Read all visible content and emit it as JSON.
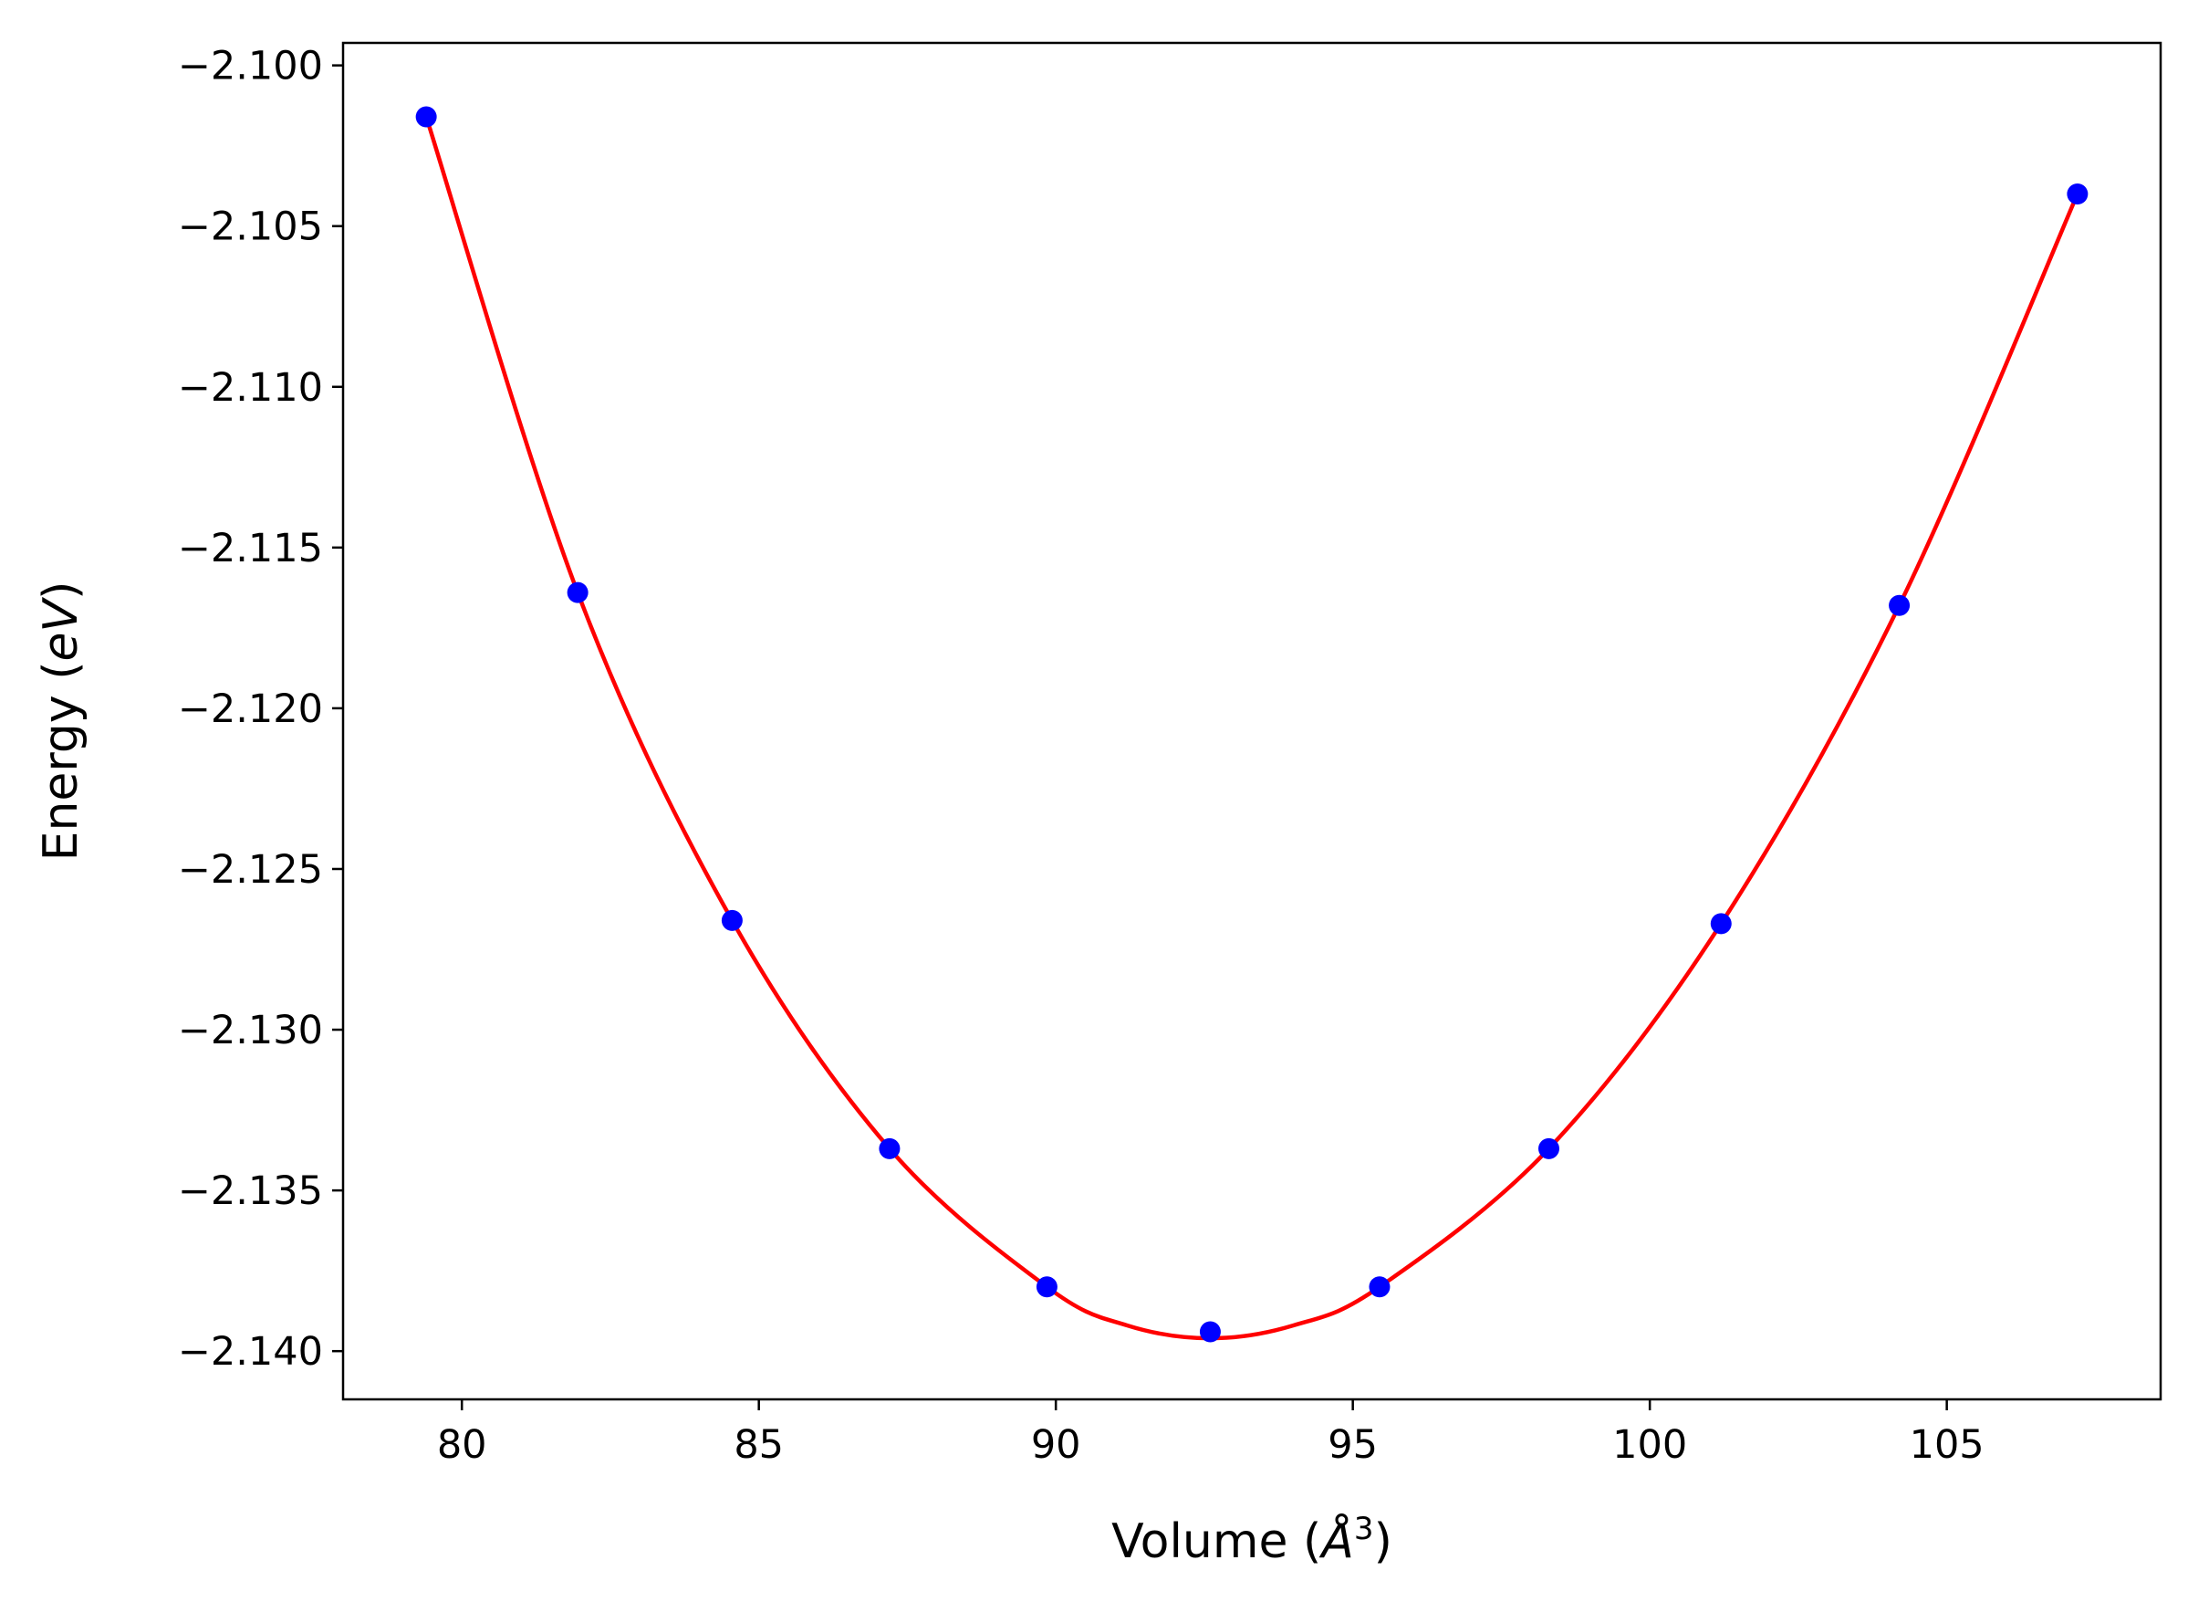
{
  "chart_data": {
    "type": "scatter",
    "title": "",
    "xlabel": "Volume (",
    "xlabel_symbol": "Å",
    "xlabel_exp": "3",
    "xlabel_close": ")",
    "ylabel": "Energy (",
    "ylabel_unit": "eV",
    "ylabel_close": ")",
    "xlim": [
      78.0,
      108.6
    ],
    "ylim": [
      -2.1415,
      -2.0993
    ],
    "xticks": [
      80,
      85,
      90,
      95,
      100,
      105
    ],
    "xtick_labels": [
      "80",
      "85",
      "90",
      "95",
      "100",
      "105"
    ],
    "yticks": [
      -2.1,
      -2.105,
      -2.11,
      -2.115,
      -2.12,
      -2.125,
      -2.13,
      -2.135,
      -2.14
    ],
    "ytick_labels": [
      "−2.100",
      "−2.105",
      "−2.110",
      "−2.115",
      "−2.120",
      "−2.125",
      "−2.130",
      "−2.135",
      "−2.140"
    ],
    "grid": false,
    "series": [
      {
        "kind": "points",
        "color": "#0000ff",
        "x": [
          79.4,
          81.95,
          84.55,
          87.2,
          89.85,
          92.6,
          95.45,
          98.3,
          101.2,
          104.2,
          107.2
        ],
        "y": [
          -2.1016,
          -2.1164,
          -2.1266,
          -2.1337,
          -2.138,
          -2.1394,
          -2.138,
          -2.1337,
          -2.1267,
          -2.1168,
          -2.104
        ]
      },
      {
        "kind": "fit-line",
        "color": "#ff0000",
        "x": [
          79.4,
          81.95,
          84.55,
          87.2,
          89.85,
          91.2,
          92.6,
          94.0,
          95.45,
          98.3,
          101.2,
          104.2,
          107.2
        ],
        "y": [
          -2.1016,
          -2.1164,
          -2.1266,
          -2.1337,
          -2.138,
          -2.1392,
          -2.1396,
          -2.1392,
          -2.138,
          -2.1337,
          -2.1267,
          -2.1168,
          -2.104
        ]
      }
    ]
  }
}
